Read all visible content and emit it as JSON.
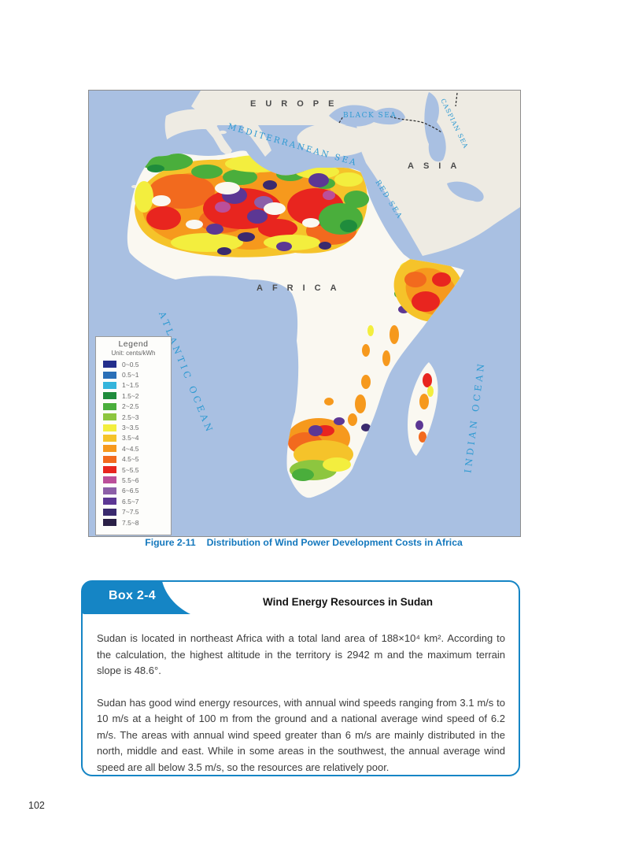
{
  "page": {
    "number": "102"
  },
  "figure": {
    "label": "Figure 2-11",
    "title": "Distribution of Wind Power Development Costs in Africa"
  },
  "map": {
    "labels": {
      "europe": "EUROPE",
      "asia": "ASIA",
      "africa": "AFRICA",
      "black_sea": "BLACK SEA",
      "caspian_sea": "CASPIAN SEA",
      "mediterranean_sea": "MEDITERRANEAN  SEA",
      "red_sea": "RED  SEA",
      "atlantic_ocean": "ATLANTIC   OCEAN",
      "indian_ocean": "INDIAN   OCEAN"
    },
    "legend": {
      "title": "Legend",
      "unit": "Unit: cents/kWh",
      "entries": [
        {
          "range": "0~0.5",
          "color": "#232e8c"
        },
        {
          "range": "0.5~1",
          "color": "#2a6fb7"
        },
        {
          "range": "1~1.5",
          "color": "#35b5dc"
        },
        {
          "range": "1.5~2",
          "color": "#1f8c3c"
        },
        {
          "range": "2~2.5",
          "color": "#4aae3c"
        },
        {
          "range": "2.5~3",
          "color": "#8dc63f"
        },
        {
          "range": "3~3.5",
          "color": "#f3ee3e"
        },
        {
          "range": "3.5~4",
          "color": "#f5c32a"
        },
        {
          "range": "4~4.5",
          "color": "#f6991d"
        },
        {
          "range": "4.5~5",
          "color": "#f26a1e"
        },
        {
          "range": "5~5.5",
          "color": "#e8251f"
        },
        {
          "range": "5.5~6",
          "color": "#bb4f9a"
        },
        {
          "range": "6~6.5",
          "color": "#8c5fa8"
        },
        {
          "range": "6.5~7",
          "color": "#5c3794"
        },
        {
          "range": "7~7.5",
          "color": "#3a2a6e"
        },
        {
          "range": "7.5~8",
          "color": "#2a2046"
        }
      ]
    },
    "colors": {
      "ocean": "#a9c0e2",
      "eurasia_land": "#eeebe3",
      "africa_land": "#faf8f1",
      "sea_label_blue": "#2f9ad2"
    }
  },
  "box": {
    "tag": "Box 2-4",
    "title": "Wind Energy Resources in Sudan",
    "accent_color": "#1585c5",
    "paragraphs": [
      "Sudan is located in northeast Africa with a total land area of 188×10⁴ km². According to the calculation, the highest altitude in the territory is 2942 m and the maximum terrain slope is 48.6°.",
      "Sudan has good wind energy resources, with annual wind speeds ranging from 3.1 m/s to 10 m/s at a height of 100 m from the ground and a national average wind speed of 6.2 m/s. The areas with annual wind speed greater than 6 m/s are mainly distributed in the north, middle and east. While in some areas in the southwest, the annual average wind speed are all below 3.5 m/s, so the resources are relatively poor."
    ]
  }
}
